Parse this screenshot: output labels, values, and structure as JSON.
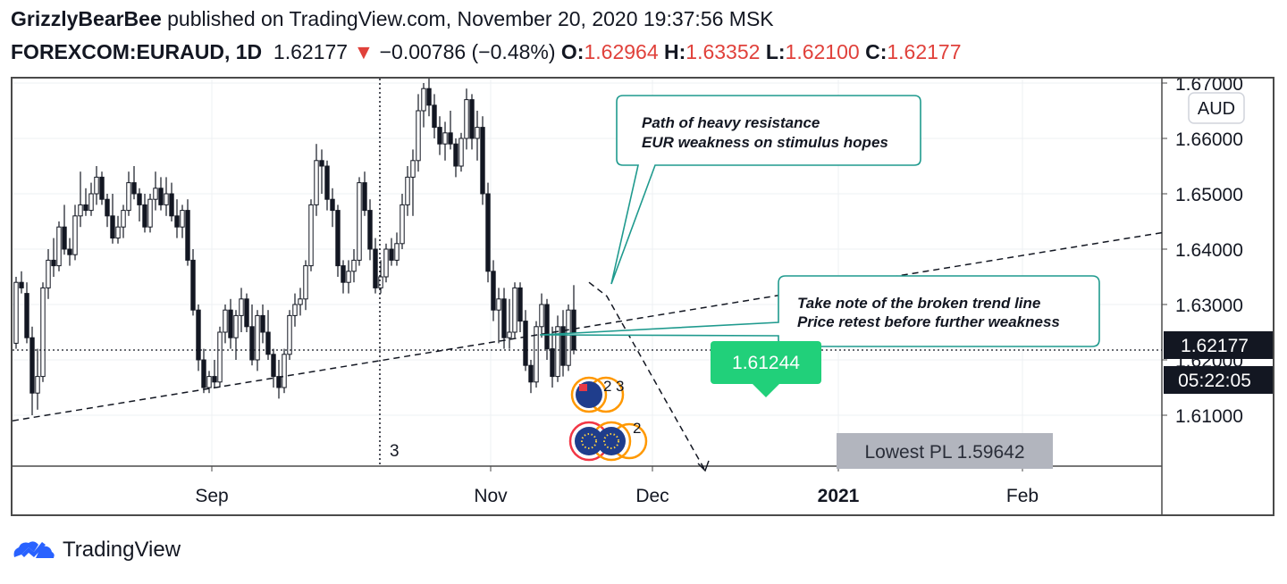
{
  "header": {
    "author": "GrizzlyBearBee",
    "published_text": "published on TradingView.com, November 20, 2020 19:37:56 MSK",
    "symbol": "FOREXCOM:EURAUD, 1D",
    "last": "1.62177",
    "change_arrow": "▼",
    "change": "−0.00786 (−0.48%)",
    "o_label": "O:",
    "o_val": "1.62964",
    "h_label": "H:",
    "h_val": "1.63352",
    "l_label": "L:",
    "l_val": "1.62100",
    "c_label": "C:",
    "c_val": "1.62177"
  },
  "colors": {
    "negative": "#e0413b",
    "teal": "#1f9a8e",
    "green_label": "#21d07a",
    "price_tag": "#131722",
    "lowest_box": "#b2b5be",
    "blue_logo": "#2962ff"
  },
  "annotations": {
    "callout1_line1": "Path of heavy resistance",
    "callout1_line2": "EUR weakness on stimulus hopes",
    "callout2_line1": "Take note of the broken trend line",
    "callout2_line2": "Price retest before further weakness",
    "target_label": "1.61244",
    "lowest_label": "Lowest PL 1.59642",
    "marker_3": "3",
    "event_2a": "2",
    "event_3": "3",
    "event_2b": "2"
  },
  "price_axis": {
    "currency": "AUD",
    "last_price_tag": "1.62177",
    "countdown_tag": "05:22:05"
  },
  "footer": {
    "brand": "TradingView"
  },
  "chart_data": {
    "type": "candlestick",
    "symbol": "FOREXCOM:EURAUD",
    "interval": "1D",
    "ylim": [
      1.6,
      1.67
    ],
    "y_ticks": [
      "1.61000",
      "1.62000",
      "1.63000",
      "1.64000",
      "1.65000",
      "1.66000",
      "1.67000"
    ],
    "x_ticks": [
      "Sep",
      "Nov",
      "Dec",
      "2021",
      "Feb"
    ],
    "last_close": 1.62177,
    "candles": [
      {
        "o": 1.623,
        "h": 1.635,
        "l": 1.622,
        "c": 1.634
      },
      {
        "o": 1.634,
        "h": 1.636,
        "l": 1.632,
        "c": 1.633
      },
      {
        "o": 1.632,
        "h": 1.634,
        "l": 1.623,
        "c": 1.624
      },
      {
        "o": 1.624,
        "h": 1.626,
        "l": 1.61,
        "c": 1.614
      },
      {
        "o": 1.614,
        "h": 1.622,
        "l": 1.611,
        "c": 1.617
      },
      {
        "o": 1.617,
        "h": 1.634,
        "l": 1.616,
        "c": 1.633
      },
      {
        "o": 1.633,
        "h": 1.64,
        "l": 1.631,
        "c": 1.638
      },
      {
        "o": 1.638,
        "h": 1.642,
        "l": 1.635,
        "c": 1.637
      },
      {
        "o": 1.637,
        "h": 1.645,
        "l": 1.636,
        "c": 1.644
      },
      {
        "o": 1.644,
        "h": 1.648,
        "l": 1.639,
        "c": 1.64
      },
      {
        "o": 1.64,
        "h": 1.642,
        "l": 1.637,
        "c": 1.639
      },
      {
        "o": 1.639,
        "h": 1.648,
        "l": 1.638,
        "c": 1.646
      },
      {
        "o": 1.646,
        "h": 1.654,
        "l": 1.644,
        "c": 1.648
      },
      {
        "o": 1.648,
        "h": 1.651,
        "l": 1.646,
        "c": 1.647
      },
      {
        "o": 1.647,
        "h": 1.652,
        "l": 1.646,
        "c": 1.65
      },
      {
        "o": 1.65,
        "h": 1.655,
        "l": 1.648,
        "c": 1.653
      },
      {
        "o": 1.653,
        "h": 1.654,
        "l": 1.648,
        "c": 1.649
      },
      {
        "o": 1.649,
        "h": 1.65,
        "l": 1.644,
        "c": 1.646
      },
      {
        "o": 1.646,
        "h": 1.65,
        "l": 1.641,
        "c": 1.642
      },
      {
        "o": 1.642,
        "h": 1.646,
        "l": 1.641,
        "c": 1.644
      },
      {
        "o": 1.644,
        "h": 1.648,
        "l": 1.642,
        "c": 1.647
      },
      {
        "o": 1.647,
        "h": 1.654,
        "l": 1.646,
        "c": 1.652
      },
      {
        "o": 1.652,
        "h": 1.655,
        "l": 1.649,
        "c": 1.65
      },
      {
        "o": 1.65,
        "h": 1.651,
        "l": 1.645,
        "c": 1.648
      },
      {
        "o": 1.648,
        "h": 1.65,
        "l": 1.643,
        "c": 1.644
      },
      {
        "o": 1.644,
        "h": 1.65,
        "l": 1.643,
        "c": 1.649
      },
      {
        "o": 1.649,
        "h": 1.654,
        "l": 1.647,
        "c": 1.651
      },
      {
        "o": 1.651,
        "h": 1.653,
        "l": 1.647,
        "c": 1.648
      },
      {
        "o": 1.648,
        "h": 1.653,
        "l": 1.646,
        "c": 1.65
      },
      {
        "o": 1.65,
        "h": 1.652,
        "l": 1.645,
        "c": 1.646
      },
      {
        "o": 1.646,
        "h": 1.649,
        "l": 1.642,
        "c": 1.644
      },
      {
        "o": 1.644,
        "h": 1.648,
        "l": 1.642,
        "c": 1.647
      },
      {
        "o": 1.647,
        "h": 1.649,
        "l": 1.637,
        "c": 1.638
      },
      {
        "o": 1.638,
        "h": 1.64,
        "l": 1.628,
        "c": 1.629
      },
      {
        "o": 1.629,
        "h": 1.63,
        "l": 1.618,
        "c": 1.62
      },
      {
        "o": 1.62,
        "h": 1.622,
        "l": 1.614,
        "c": 1.615
      },
      {
        "o": 1.615,
        "h": 1.618,
        "l": 1.614,
        "c": 1.617
      },
      {
        "o": 1.617,
        "h": 1.62,
        "l": 1.615,
        "c": 1.616
      },
      {
        "o": 1.616,
        "h": 1.626,
        "l": 1.615,
        "c": 1.625
      },
      {
        "o": 1.625,
        "h": 1.63,
        "l": 1.623,
        "c": 1.629
      },
      {
        "o": 1.629,
        "h": 1.631,
        "l": 1.622,
        "c": 1.624
      },
      {
        "o": 1.624,
        "h": 1.629,
        "l": 1.62,
        "c": 1.628
      },
      {
        "o": 1.628,
        "h": 1.633,
        "l": 1.625,
        "c": 1.631
      },
      {
        "o": 1.631,
        "h": 1.632,
        "l": 1.625,
        "c": 1.626
      },
      {
        "o": 1.626,
        "h": 1.63,
        "l": 1.619,
        "c": 1.62
      },
      {
        "o": 1.62,
        "h": 1.629,
        "l": 1.618,
        "c": 1.628
      },
      {
        "o": 1.628,
        "h": 1.63,
        "l": 1.623,
        "c": 1.625
      },
      {
        "o": 1.625,
        "h": 1.629,
        "l": 1.62,
        "c": 1.621
      },
      {
        "o": 1.621,
        "h": 1.622,
        "l": 1.615,
        "c": 1.617
      },
      {
        "o": 1.617,
        "h": 1.62,
        "l": 1.613,
        "c": 1.615
      },
      {
        "o": 1.615,
        "h": 1.622,
        "l": 1.614,
        "c": 1.621
      },
      {
        "o": 1.621,
        "h": 1.629,
        "l": 1.62,
        "c": 1.628
      },
      {
        "o": 1.628,
        "h": 1.632,
        "l": 1.626,
        "c": 1.63
      },
      {
        "o": 1.63,
        "h": 1.633,
        "l": 1.628,
        "c": 1.631
      },
      {
        "o": 1.631,
        "h": 1.638,
        "l": 1.629,
        "c": 1.637
      },
      {
        "o": 1.637,
        "h": 1.649,
        "l": 1.636,
        "c": 1.648
      },
      {
        "o": 1.648,
        "h": 1.659,
        "l": 1.646,
        "c": 1.656
      },
      {
        "o": 1.656,
        "h": 1.658,
        "l": 1.65,
        "c": 1.655
      },
      {
        "o": 1.655,
        "h": 1.656,
        "l": 1.647,
        "c": 1.649
      },
      {
        "o": 1.649,
        "h": 1.651,
        "l": 1.644,
        "c": 1.647
      },
      {
        "o": 1.647,
        "h": 1.648,
        "l": 1.635,
        "c": 1.637
      },
      {
        "o": 1.637,
        "h": 1.638,
        "l": 1.632,
        "c": 1.634
      },
      {
        "o": 1.634,
        "h": 1.638,
        "l": 1.632,
        "c": 1.636
      },
      {
        "o": 1.636,
        "h": 1.64,
        "l": 1.634,
        "c": 1.638
      },
      {
        "o": 1.638,
        "h": 1.653,
        "l": 1.637,
        "c": 1.652
      },
      {
        "o": 1.652,
        "h": 1.654,
        "l": 1.646,
        "c": 1.647
      },
      {
        "o": 1.647,
        "h": 1.649,
        "l": 1.638,
        "c": 1.64
      },
      {
        "o": 1.64,
        "h": 1.642,
        "l": 1.632,
        "c": 1.633
      },
      {
        "o": 1.633,
        "h": 1.638,
        "l": 1.632,
        "c": 1.635
      },
      {
        "o": 1.635,
        "h": 1.641,
        "l": 1.634,
        "c": 1.64
      },
      {
        "o": 1.64,
        "h": 1.642,
        "l": 1.637,
        "c": 1.638
      },
      {
        "o": 1.638,
        "h": 1.643,
        "l": 1.637,
        "c": 1.641
      },
      {
        "o": 1.641,
        "h": 1.65,
        "l": 1.64,
        "c": 1.648
      },
      {
        "o": 1.648,
        "h": 1.655,
        "l": 1.646,
        "c": 1.653
      },
      {
        "o": 1.653,
        "h": 1.658,
        "l": 1.646,
        "c": 1.656
      },
      {
        "o": 1.656,
        "h": 1.668,
        "l": 1.654,
        "c": 1.665
      },
      {
        "o": 1.665,
        "h": 1.67,
        "l": 1.662,
        "c": 1.669
      },
      {
        "o": 1.669,
        "h": 1.672,
        "l": 1.664,
        "c": 1.666
      },
      {
        "o": 1.666,
        "h": 1.668,
        "l": 1.66,
        "c": 1.662
      },
      {
        "o": 1.662,
        "h": 1.664,
        "l": 1.657,
        "c": 1.659
      },
      {
        "o": 1.659,
        "h": 1.663,
        "l": 1.656,
        "c": 1.661
      },
      {
        "o": 1.661,
        "h": 1.665,
        "l": 1.658,
        "c": 1.659
      },
      {
        "o": 1.659,
        "h": 1.66,
        "l": 1.653,
        "c": 1.655
      },
      {
        "o": 1.655,
        "h": 1.661,
        "l": 1.654,
        "c": 1.66
      },
      {
        "o": 1.66,
        "h": 1.669,
        "l": 1.658,
        "c": 1.667
      },
      {
        "o": 1.667,
        "h": 1.668,
        "l": 1.658,
        "c": 1.66
      },
      {
        "o": 1.66,
        "h": 1.665,
        "l": 1.656,
        "c": 1.662
      },
      {
        "o": 1.662,
        "h": 1.664,
        "l": 1.648,
        "c": 1.65
      },
      {
        "o": 1.65,
        "h": 1.652,
        "l": 1.634,
        "c": 1.636
      },
      {
        "o": 1.636,
        "h": 1.638,
        "l": 1.627,
        "c": 1.629
      },
      {
        "o": 1.629,
        "h": 1.633,
        "l": 1.623,
        "c": 1.631
      },
      {
        "o": 1.631,
        "h": 1.633,
        "l": 1.622,
        "c": 1.624
      },
      {
        "o": 1.624,
        "h": 1.631,
        "l": 1.622,
        "c": 1.625
      },
      {
        "o": 1.625,
        "h": 1.634,
        "l": 1.624,
        "c": 1.633
      },
      {
        "o": 1.633,
        "h": 1.634,
        "l": 1.625,
        "c": 1.627
      },
      {
        "o": 1.627,
        "h": 1.629,
        "l": 1.618,
        "c": 1.619
      },
      {
        "o": 1.619,
        "h": 1.62,
        "l": 1.614,
        "c": 1.616
      },
      {
        "o": 1.616,
        "h": 1.627,
        "l": 1.615,
        "c": 1.626
      },
      {
        "o": 1.626,
        "h": 1.632,
        "l": 1.624,
        "c": 1.63
      },
      {
        "o": 1.63,
        "h": 1.631,
        "l": 1.62,
        "c": 1.622
      },
      {
        "o": 1.622,
        "h": 1.626,
        "l": 1.615,
        "c": 1.617
      },
      {
        "o": 1.617,
        "h": 1.628,
        "l": 1.616,
        "c": 1.626
      },
      {
        "o": 1.626,
        "h": 1.629,
        "l": 1.617,
        "c": 1.619
      },
      {
        "o": 1.619,
        "h": 1.63,
        "l": 1.618,
        "c": 1.629
      },
      {
        "o": 1.629,
        "h": 1.6335,
        "l": 1.621,
        "c": 1.6218
      }
    ],
    "trend_line": [
      [
        0,
        1.609
      ],
      [
        1287,
        1.643
      ]
    ],
    "projection_path": [
      [
        645,
        1.634
      ],
      [
        665,
        1.6315
      ],
      [
        775,
        1.6
      ]
    ],
    "levels": {
      "target": 1.61244,
      "lowest_pl": 1.59642
    }
  }
}
